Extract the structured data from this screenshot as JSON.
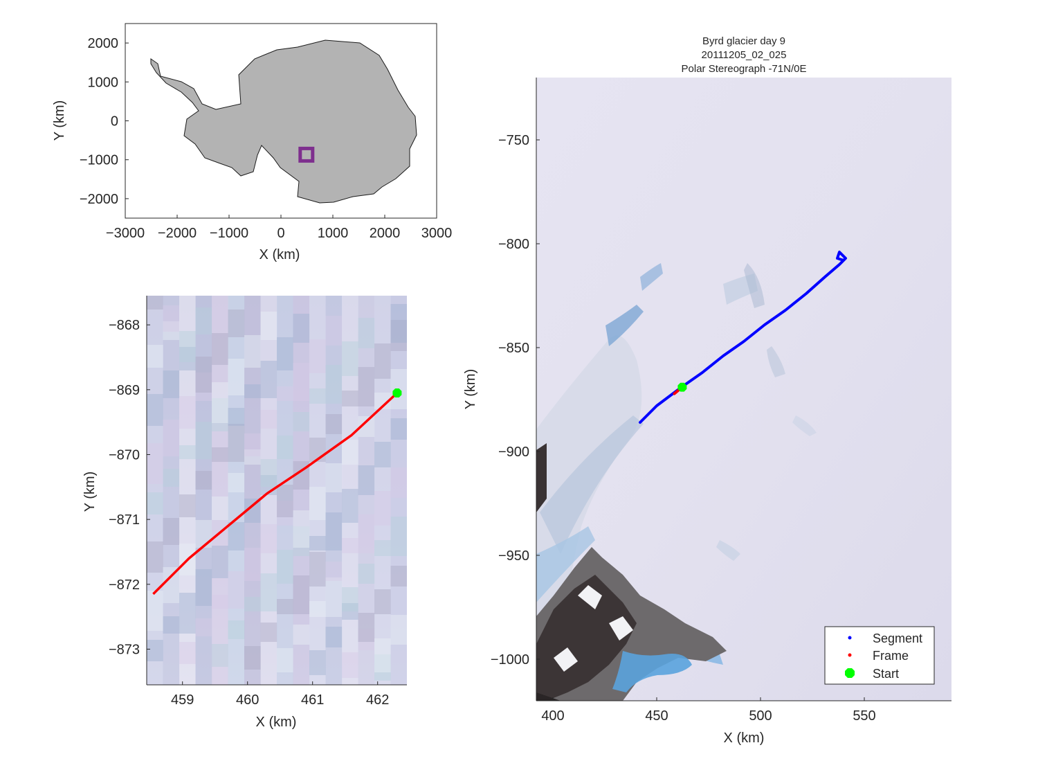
{
  "overview": {
    "xlabel": "X (km)",
    "ylabel": "Y (km)",
    "xlim": [
      -3000,
      3000
    ],
    "ylim": [
      -2500,
      2500
    ],
    "xticks": [
      -3000,
      -2000,
      -1000,
      0,
      1000,
      2000,
      3000
    ],
    "yticks": [
      -2000,
      -1000,
      0,
      1000,
      2000
    ],
    "land_color": "#b3b3b3",
    "marker_color": "#7e2f8e",
    "marker": {
      "x": 490,
      "y": -870
    }
  },
  "detail": {
    "xlabel": "X (km)",
    "ylabel": "Y (km)",
    "xlim": [
      458.45,
      462.45
    ],
    "ylim": [
      -873.55,
      -867.55
    ],
    "xticks": [
      459,
      460,
      461,
      462
    ],
    "yticks": [
      -873,
      -872,
      -871,
      -870,
      -869,
      -868
    ],
    "frame_color": "#ff0000",
    "start_color": "#00ff00",
    "frame_path": [
      [
        458.55,
        -872.15
      ],
      [
        459.1,
        -871.6
      ],
      [
        459.7,
        -871.1
      ],
      [
        460.3,
        -870.6
      ],
      [
        460.9,
        -870.2
      ],
      [
        461.6,
        -869.7
      ],
      [
        462.3,
        -869.05
      ]
    ],
    "start": {
      "x": 462.3,
      "y": -869.05
    }
  },
  "main": {
    "title_lines": [
      "Byrd glacier day 9",
      "20111205_02_025",
      "Polar Stereograph -71N/0E"
    ],
    "xlabel": "X (km)",
    "ylabel": "Y (km)",
    "xlim": [
      392,
      592
    ],
    "ylim": [
      -1020,
      -720
    ],
    "xticks": [
      400,
      450,
      500,
      550
    ],
    "yticks": [
      -1000,
      -950,
      -900,
      -850,
      -800,
      -750
    ],
    "segment_color": "#0000ff",
    "frame_color": "#ff0000",
    "start_color": "#00ff00",
    "segment_path": [
      [
        442,
        -886
      ],
      [
        450,
        -878
      ],
      [
        462,
        -869
      ],
      [
        472,
        -862
      ],
      [
        482,
        -854
      ],
      [
        492,
        -847
      ],
      [
        502,
        -839
      ],
      [
        512,
        -832
      ],
      [
        522,
        -824
      ],
      [
        531,
        -816
      ],
      [
        538,
        -810
      ],
      [
        541,
        -807
      ],
      [
        538,
        -804
      ],
      [
        537,
        -807
      ],
      [
        540,
        -808
      ]
    ],
    "frame_path": [
      [
        458.5,
        -872.2
      ],
      [
        462.3,
        -869.05
      ]
    ],
    "start": {
      "x": 462.3,
      "y": -869.05
    },
    "legend": {
      "position": "bottom-right",
      "entries": [
        {
          "label": "Segment",
          "color": "#0000ff",
          "marker": "dot"
        },
        {
          "label": "Frame",
          "color": "#ff0000",
          "marker": "dot"
        },
        {
          "label": "Start",
          "color": "#00ff00",
          "marker": "octagon"
        }
      ]
    }
  }
}
